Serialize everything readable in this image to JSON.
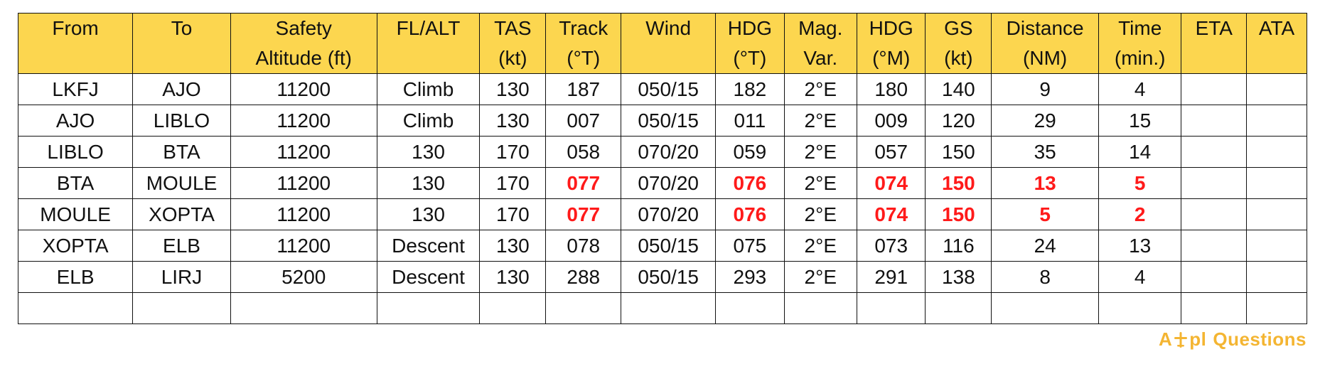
{
  "table": {
    "headers": [
      [
        "From"
      ],
      [
        "To"
      ],
      [
        "Safety",
        "Altitude (ft)"
      ],
      [
        "FL/ALT"
      ],
      [
        "TAS",
        "(kt)"
      ],
      [
        "Track",
        "(°T)"
      ],
      [
        "Wind"
      ],
      [
        "HDG",
        "(°T)"
      ],
      [
        "Mag.",
        "Var."
      ],
      [
        "HDG",
        "(°M)"
      ],
      [
        "GS",
        "(kt)"
      ],
      [
        "Distance",
        "(NM)"
      ],
      [
        "Time",
        "(min.)"
      ],
      [
        "ETA"
      ],
      [
        "ATA"
      ]
    ],
    "rows": [
      [
        "LKFJ",
        "AJO",
        "11200",
        "Climb",
        "130",
        "187",
        "050/15",
        "182",
        "2°E",
        "180",
        "140",
        "9",
        "4",
        "",
        ""
      ],
      [
        "AJO",
        "LIBLO",
        "11200",
        "Climb",
        "130",
        "007",
        "050/15",
        "011",
        "2°E",
        "009",
        "120",
        "29",
        "15",
        "",
        ""
      ],
      [
        "LIBLO",
        "BTA",
        "11200",
        "130",
        "170",
        "058",
        "070/20",
        "059",
        "2°E",
        "057",
        "150",
        "35",
        "14",
        "",
        ""
      ],
      [
        "BTA",
        "MOULE",
        "11200",
        "130",
        "170",
        "077",
        "070/20",
        "076",
        "2°E",
        "074",
        "150",
        "13",
        "5",
        "",
        ""
      ],
      [
        "MOULE",
        "XOPTA",
        "11200",
        "130",
        "170",
        "077",
        "070/20",
        "076",
        "2°E",
        "074",
        "150",
        "5",
        "2",
        "",
        ""
      ],
      [
        "XOPTA",
        "ELB",
        "11200",
        "Descent",
        "130",
        "078",
        "050/15",
        "075",
        "2°E",
        "073",
        "116",
        "24",
        "13",
        "",
        ""
      ],
      [
        "ELB",
        "LIRJ",
        "5200",
        "Descent",
        "130",
        "288",
        "050/15",
        "293",
        "2°E",
        "291",
        "138",
        "8",
        "4",
        "",
        ""
      ],
      [
        "",
        "",
        "",
        "",
        "",
        "",
        "",
        "",
        "",
        "",
        "",
        "",
        "",
        "",
        ""
      ]
    ],
    "highlighted_rows": [
      3,
      4
    ],
    "highlighted_columns": [
      5,
      7,
      9,
      10,
      11,
      12
    ]
  },
  "brand": {
    "prefix": "A",
    "suffix": "pl",
    "word": "Questions"
  },
  "colors": {
    "header_bg": "#fcd64f",
    "highlight_text": "#ff1a1a",
    "brand": "#f4b532"
  }
}
